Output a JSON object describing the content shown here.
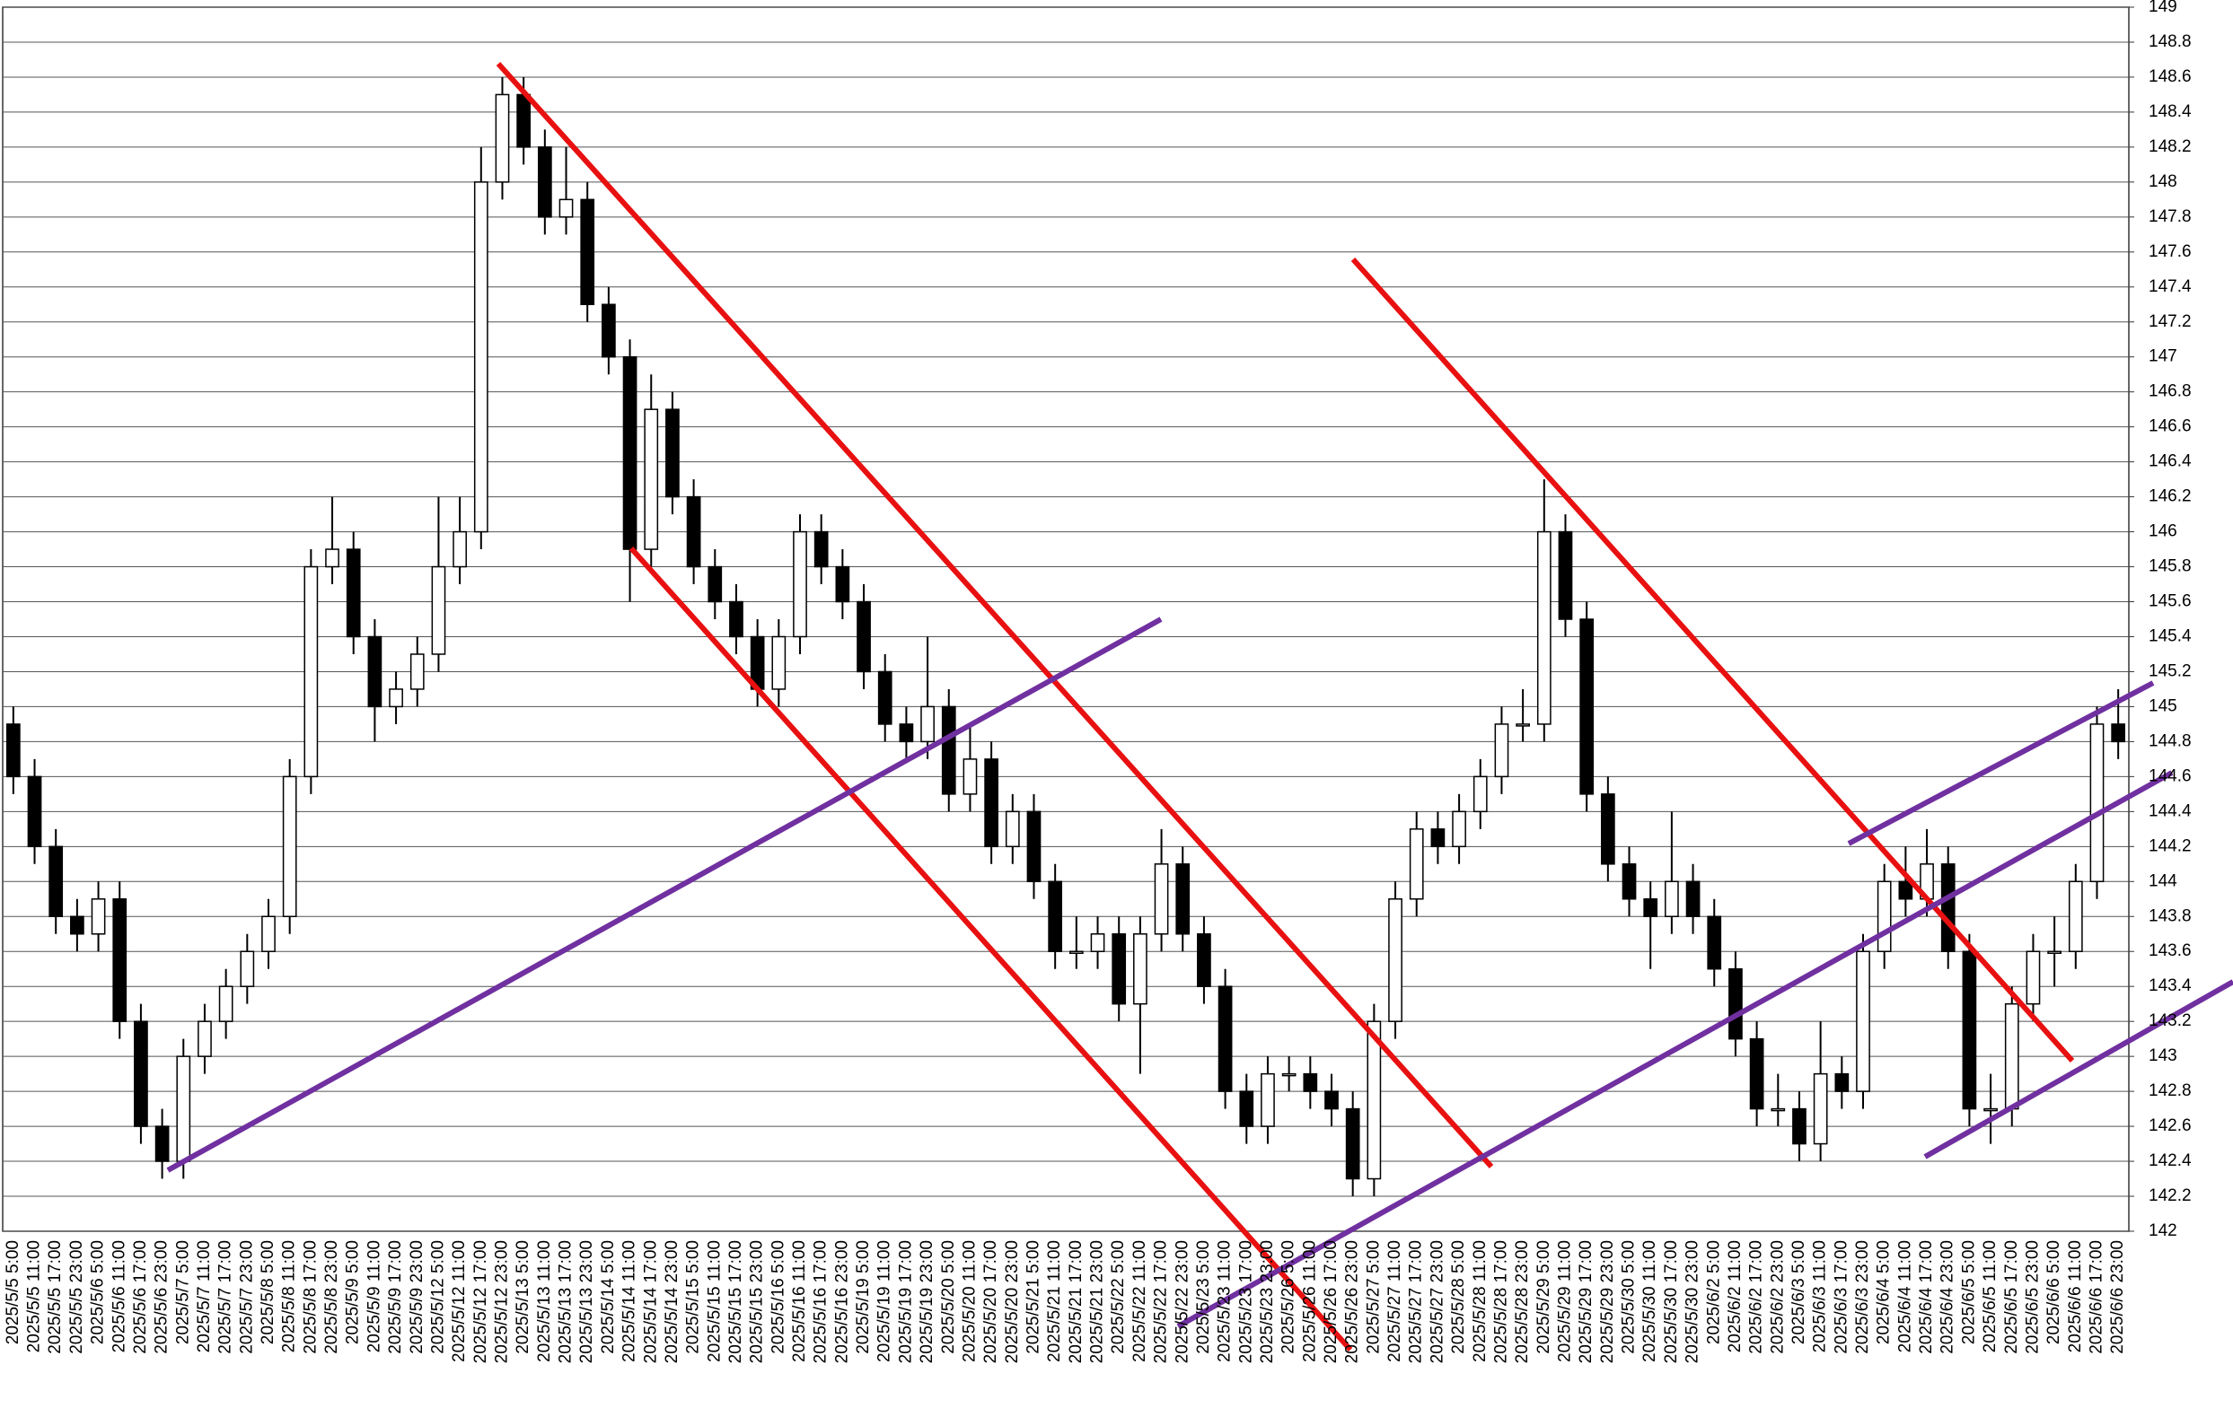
{
  "chart_data": {
    "type": "candlestick",
    "categories": [
      "2025/5/5 5:00",
      "2025/5/5 11:00",
      "2025/5/5 17:00",
      "2025/5/5 23:00",
      "2025/5/6 5:00",
      "2025/5/6 11:00",
      "2025/5/6 17:00",
      "2025/5/6 23:00",
      "2025/5/7 5:00",
      "2025/5/7 11:00",
      "2025/5/7 17:00",
      "2025/5/7 23:00",
      "2025/5/8 5:00",
      "2025/5/8 11:00",
      "2025/5/8 17:00",
      "2025/5/8 23:00",
      "2025/5/9 5:00",
      "2025/5/9 11:00",
      "2025/5/9 17:00",
      "2025/5/9 23:00",
      "2025/5/12 5:00",
      "2025/5/12 11:00",
      "2025/5/12 17:00",
      "2025/5/12 23:00",
      "2025/5/13 5:00",
      "2025/5/13 11:00",
      "2025/5/13 17:00",
      "2025/5/13 23:00",
      "2025/5/14 5:00",
      "2025/5/14 11:00",
      "2025/5/14 17:00",
      "2025/5/14 23:00",
      "2025/5/15 5:00",
      "2025/5/15 11:00",
      "2025/5/15 17:00",
      "2025/5/15 23:00",
      "2025/5/16 5:00",
      "2025/5/16 11:00",
      "2025/5/16 17:00",
      "2025/5/16 23:00",
      "2025/5/19 5:00",
      "2025/5/19 11:00",
      "2025/5/19 17:00",
      "2025/5/19 23:00",
      "2025/5/20 5:00",
      "2025/5/20 11:00",
      "2025/5/20 17:00",
      "2025/5/20 23:00",
      "2025/5/21 5:00",
      "2025/5/21 11:00",
      "2025/5/21 17:00",
      "2025/5/21 23:00",
      "2025/5/22 5:00",
      "2025/5/22 11:00",
      "2025/5/22 17:00",
      "2025/5/22 23:00",
      "2025/5/23 5:00",
      "2025/5/23 11:00",
      "2025/5/23 17:00",
      "2025/5/23 23:00",
      "2025/5/26 5:00",
      "2025/5/26 11:00",
      "2025/5/26 17:00",
      "2025/5/26 23:00",
      "2025/5/27 5:00",
      "2025/5/27 11:00",
      "2025/5/27 17:00",
      "2025/5/27 23:00",
      "2025/5/28 5:00",
      "2025/5/28 11:00",
      "2025/5/28 17:00",
      "2025/5/28 23:00",
      "2025/5/29 5:00",
      "2025/5/29 11:00",
      "2025/5/29 17:00",
      "2025/5/29 23:00",
      "2025/5/30 5:00",
      "2025/5/30 11:00",
      "2025/5/30 17:00",
      "2025/5/30 23:00",
      "2025/6/2 5:00",
      "2025/6/2 11:00",
      "2025/6/2 17:00",
      "2025/6/2 23:00",
      "2025/6/3 5:00",
      "2025/6/3 11:00",
      "2025/6/3 17:00",
      "2025/6/3 23:00",
      "2025/6/4 5:00",
      "2025/6/4 11:00",
      "2025/6/4 17:00",
      "2025/6/4 23:00",
      "2025/6/5 5:00",
      "2025/6/5 11:00",
      "2025/6/5 17:00",
      "2025/6/5 23:00",
      "2025/6/6 5:00",
      "2025/6/6 11:00",
      "2025/6/6 17:00",
      "2025/6/6 23:00"
    ],
    "open": [
      144.9,
      144.6,
      144.2,
      143.8,
      143.7,
      143.9,
      143.2,
      142.6,
      142.4,
      143.0,
      143.2,
      143.4,
      143.6,
      143.8,
      144.6,
      145.8,
      145.9,
      145.4,
      145.0,
      145.1,
      145.3,
      145.8,
      146.0,
      148.0,
      148.5,
      148.2,
      147.8,
      147.9,
      147.3,
      147.0,
      145.9,
      146.7,
      146.2,
      145.8,
      145.6,
      145.4,
      145.1,
      145.4,
      146.0,
      145.8,
      145.6,
      145.2,
      144.9,
      144.8,
      145.0,
      144.5,
      144.7,
      144.2,
      144.4,
      144.0,
      143.6,
      143.6,
      143.7,
      143.3,
      143.7,
      144.1,
      143.7,
      143.4,
      142.8,
      142.6,
      142.9,
      142.9,
      142.8,
      142.7,
      142.3,
      143.2,
      143.9,
      144.3,
      144.2,
      144.4,
      144.6,
      144.9,
      144.9,
      146.0,
      145.5,
      144.5,
      144.1,
      143.9,
      143.8,
      144.0,
      143.8,
      143.5,
      143.1,
      142.7,
      142.7,
      142.5,
      142.9,
      142.8,
      143.6,
      144.0,
      143.9,
      144.1,
      143.6,
      142.7,
      142.7,
      143.3,
      143.6,
      143.6,
      144.0,
      144.9
    ],
    "high": [
      145.0,
      144.7,
      144.3,
      143.9,
      144.0,
      144.0,
      143.3,
      142.7,
      143.1,
      143.3,
      143.5,
      143.7,
      143.9,
      144.7,
      145.9,
      146.2,
      146.0,
      145.5,
      145.2,
      145.4,
      146.2,
      146.2,
      148.2,
      148.6,
      148.6,
      148.3,
      148.2,
      148.0,
      147.4,
      147.1,
      146.9,
      146.8,
      146.3,
      145.9,
      145.7,
      145.5,
      145.5,
      146.1,
      146.1,
      145.9,
      145.7,
      145.3,
      145.0,
      145.4,
      145.1,
      144.9,
      144.8,
      144.5,
      144.5,
      144.1,
      143.8,
      143.8,
      143.8,
      143.8,
      144.3,
      144.2,
      143.8,
      143.5,
      142.9,
      143.0,
      143.0,
      143.0,
      142.9,
      142.8,
      143.3,
      144.0,
      144.4,
      144.4,
      144.5,
      144.7,
      145.0,
      145.1,
      146.3,
      146.1,
      145.6,
      144.6,
      144.2,
      144.0,
      144.4,
      144.1,
      143.9,
      143.6,
      143.2,
      142.9,
      142.8,
      143.2,
      143.0,
      143.7,
      144.1,
      144.2,
      144.3,
      144.2,
      143.7,
      142.9,
      143.4,
      143.7,
      143.8,
      144.1,
      145.0,
      145.1
    ],
    "low": [
      144.5,
      144.1,
      143.7,
      143.6,
      143.6,
      143.1,
      142.5,
      142.3,
      142.3,
      142.9,
      143.1,
      143.3,
      143.5,
      143.7,
      144.5,
      145.7,
      145.3,
      144.8,
      144.9,
      145.0,
      145.2,
      145.7,
      145.9,
      147.9,
      148.1,
      147.7,
      147.7,
      147.2,
      146.9,
      145.6,
      145.8,
      146.1,
      145.7,
      145.5,
      145.3,
      145.0,
      145.0,
      145.3,
      145.7,
      145.5,
      145.1,
      144.8,
      144.7,
      144.7,
      144.4,
      144.4,
      144.1,
      144.1,
      143.9,
      143.5,
      143.5,
      143.5,
      143.2,
      142.9,
      143.6,
      143.6,
      143.3,
      142.7,
      142.5,
      142.5,
      142.8,
      142.7,
      142.6,
      142.2,
      142.2,
      143.1,
      143.8,
      144.1,
      144.1,
      144.3,
      144.5,
      144.8,
      144.8,
      145.4,
      144.4,
      144.0,
      143.8,
      143.5,
      143.7,
      143.7,
      143.4,
      143.0,
      142.6,
      142.6,
      142.4,
      142.4,
      142.7,
      142.7,
      143.5,
      143.8,
      143.8,
      143.5,
      142.6,
      142.5,
      142.6,
      143.2,
      143.4,
      143.5,
      143.9,
      144.7
    ],
    "close": [
      144.6,
      144.2,
      143.8,
      143.7,
      143.9,
      143.2,
      142.6,
      142.4,
      143.0,
      143.2,
      143.4,
      143.6,
      143.8,
      144.6,
      145.8,
      145.9,
      145.4,
      145.0,
      145.1,
      145.3,
      145.8,
      146.0,
      148.0,
      148.5,
      148.2,
      147.8,
      147.9,
      147.3,
      147.0,
      145.9,
      146.7,
      146.2,
      145.8,
      145.6,
      145.4,
      145.1,
      145.4,
      146.0,
      145.8,
      145.6,
      145.2,
      144.9,
      144.8,
      145.0,
      144.5,
      144.7,
      144.2,
      144.4,
      144.0,
      143.6,
      143.6,
      143.7,
      143.3,
      143.7,
      144.1,
      143.7,
      143.4,
      142.8,
      142.6,
      142.9,
      142.9,
      142.8,
      142.7,
      142.3,
      143.2,
      143.9,
      144.3,
      144.2,
      144.4,
      144.6,
      144.9,
      144.9,
      146.0,
      145.5,
      144.5,
      144.1,
      143.9,
      143.8,
      144.0,
      143.8,
      143.5,
      143.1,
      142.7,
      142.7,
      142.5,
      142.9,
      142.8,
      143.6,
      144.0,
      143.9,
      144.1,
      143.6,
      142.7,
      142.7,
      143.3,
      143.6,
      143.6,
      144.0,
      144.9,
      144.8
    ],
    "ylim": [
      142,
      149
    ],
    "yticks": [
      142,
      142.2,
      142.4,
      142.6,
      142.8,
      143,
      143.2,
      143.4,
      143.6,
      143.8,
      144,
      144.2,
      144.4,
      144.6,
      144.8,
      145,
      145.2,
      145.4,
      145.6,
      145.8,
      146,
      146.2,
      146.4,
      146.6,
      146.8,
      147,
      147.2,
      147.4,
      147.6,
      147.8,
      148,
      148.2,
      148.4,
      148.6,
      148.8,
      149
    ],
    "grid": true,
    "up_color": "#ffffff",
    "down_color": "#000000"
  }
}
